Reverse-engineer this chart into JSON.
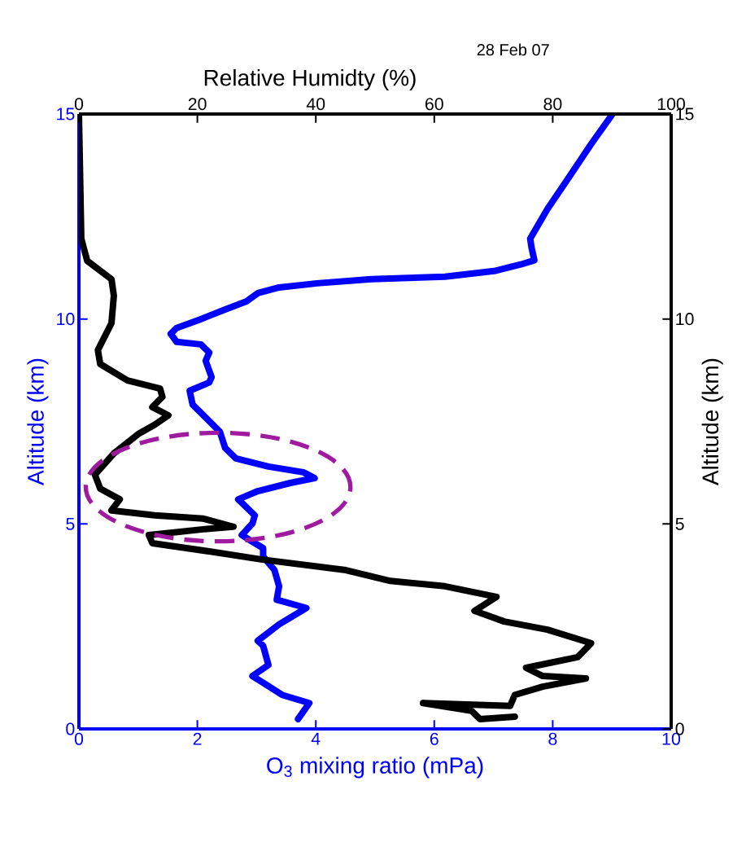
{
  "chart_data": {
    "type": "line",
    "xlabel": "O$_{3}$ mixing ratio (mPa)",
    "ylabel": "Altitude (km)",
    "x2label": "Relative Humidty (%)",
    "y2label": "Altitude (km)",
    "annotations": [
      "28 Feb 07"
    ],
    "xlim": [
      0,
      10
    ],
    "xticks": [
      0,
      2,
      4,
      6,
      8,
      10
    ],
    "x2lim": [
      0,
      100
    ],
    "x2ticks": [
      0,
      20,
      40,
      60,
      80,
      100
    ],
    "ylim": [
      0,
      15
    ],
    "yticks": [
      0,
      5,
      10,
      15
    ],
    "y2lim": [
      0,
      15
    ],
    "y2ticks": [
      0,
      5,
      10,
      15
    ],
    "series": [
      {
        "color": "#0000ff",
        "x": [
          3.7,
          3.89,
          3.43,
          3.15,
          2.93,
          3.2,
          3.11,
          3.02,
          3.38,
          3.84,
          3.34,
          3.38,
          3.3,
          3.11,
          3.11,
          2.88,
          2.75,
          2.93,
          2.97,
          2.69,
          3.02,
          3.57,
          3.98,
          3.79,
          3.2,
          2.65,
          2.47,
          2.38,
          2.06,
          1.92,
          1.87,
          2.2,
          2.24,
          2.14,
          2.2,
          2.06,
          1.65,
          1.55,
          1.65,
          2.01,
          2.47,
          2.83,
          3.02,
          3.38,
          4.02,
          4.94,
          6.18,
          7.01,
          7.46,
          7.69,
          7.64,
          7.62,
          7.91,
          8.28,
          8.65,
          9.01
        ],
        "values": [
          0.24,
          0.63,
          0.83,
          1.09,
          1.29,
          1.56,
          2.03,
          2.15,
          2.55,
          2.95,
          3.15,
          3.48,
          3.88,
          4.21,
          4.41,
          4.61,
          4.73,
          5.01,
          5.21,
          5.6,
          5.8,
          6.0,
          6.12,
          6.26,
          6.4,
          6.6,
          6.85,
          7.25,
          7.71,
          7.91,
          8.25,
          8.45,
          8.58,
          8.98,
          9.18,
          9.38,
          9.44,
          9.64,
          9.78,
          9.97,
          10.23,
          10.43,
          10.63,
          10.77,
          10.87,
          10.97,
          11.03,
          11.17,
          11.33,
          11.43,
          11.76,
          11.96,
          12.68,
          13.47,
          14.27,
          15.0
        ]
      },
      {
        "color": "#000000",
        "axis": "x2",
        "x": [
          0,
          0.4,
          1.4,
          5.5,
          5.9,
          5.5,
          3.2,
          3.6,
          8.2,
          13.7,
          14.1,
          12.4,
          15.1,
          12.8,
          10.0,
          5.9,
          2.7,
          3.6,
          6.9,
          5.5,
          12.8,
          21.0,
          26.1,
          21.0,
          11.8,
          12.4,
          22.0,
          31.0,
          44.8,
          52.6,
          61.8,
          70.5,
          66.8,
          71.8,
          79.1,
          86.5,
          84.2,
          75.5,
          78.3,
          85.6,
          78.3,
          73.6,
          72.8,
          58.1,
          66.3,
          67.7,
          73.6
        ],
        "values": [
          15.0,
          11.96,
          11.42,
          10.97,
          10.57,
          9.9,
          9.24,
          8.9,
          8.5,
          8.3,
          8.1,
          7.85,
          7.65,
          7.42,
          7.19,
          6.72,
          6.2,
          5.86,
          5.6,
          5.33,
          5.21,
          5.13,
          4.93,
          4.87,
          4.73,
          4.53,
          4.33,
          4.13,
          3.88,
          3.61,
          3.48,
          3.22,
          2.88,
          2.62,
          2.42,
          2.09,
          1.75,
          1.49,
          1.29,
          1.23,
          1.03,
          0.83,
          0.56,
          0.63,
          0.44,
          0.24,
          0.3
        ]
      }
    ]
  }
}
